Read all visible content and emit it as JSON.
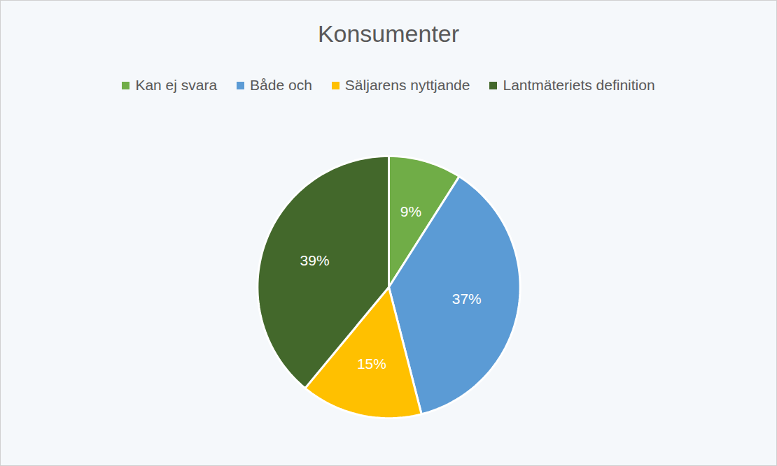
{
  "chart_data": {
    "type": "pie",
    "title": "Konsumenter",
    "categories": [
      "Kan ej svara",
      "Både och",
      "Säljarens nyttjande",
      "Lantmäteriets definition"
    ],
    "values": [
      9,
      37,
      15,
      39
    ],
    "value_labels": [
      "9%",
      "37%",
      "15%",
      "39%"
    ],
    "colors": [
      "#70ad47",
      "#5b9bd5",
      "#ffc000",
      "#43682b"
    ],
    "legend": "top",
    "data_labels": true
  }
}
